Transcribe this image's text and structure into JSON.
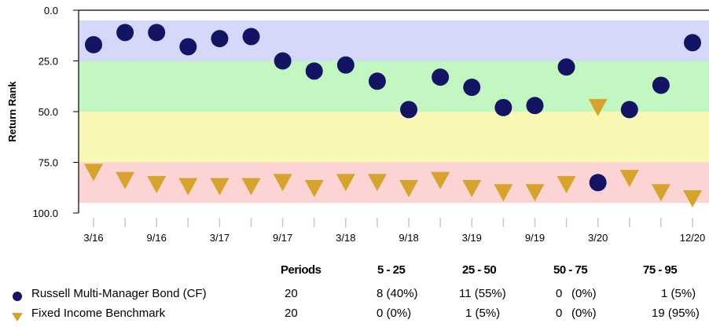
{
  "chart_data": {
    "type": "scatter",
    "ylabel": "Return Rank",
    "y_ticks": [
      "0.0",
      "25.0",
      "50.0",
      "75.0",
      "100.0"
    ],
    "ylim": [
      0,
      100
    ],
    "y_inverted": true,
    "x_tick_labels": [
      "3/16",
      "9/16",
      "3/17",
      "9/17",
      "3/18",
      "9/18",
      "3/19",
      "9/19",
      "3/20",
      "12/20"
    ],
    "bands": [
      {
        "from": 5,
        "to": 25,
        "color": "#d6d8fa"
      },
      {
        "from": 25,
        "to": 50,
        "color": "#c2f7c2"
      },
      {
        "from": 50,
        "to": 75,
        "color": "#f9f7b4"
      },
      {
        "from": 75,
        "to": 95,
        "color": "#fdd4d4"
      }
    ],
    "series": [
      {
        "name": "Russell Multi-Manager Bond (CF)",
        "marker": "circle",
        "color": "#141464",
        "values": [
          17,
          11,
          11,
          18,
          14,
          13,
          25,
          30,
          27,
          35,
          49,
          33,
          38,
          48,
          47,
          28,
          85,
          49,
          37,
          16
        ]
      },
      {
        "name": "Fixed Income Benchmark",
        "marker": "triangle-down",
        "color": "#d6a32c",
        "values": [
          80,
          84,
          86,
          87,
          87,
          87,
          85,
          88,
          85,
          85,
          88,
          84,
          88,
          90,
          90,
          86,
          48,
          83,
          90,
          93
        ]
      }
    ]
  },
  "table": {
    "headers": [
      "Periods",
      "5 - 25",
      "25 - 50",
      "50 - 75",
      "75 - 95"
    ],
    "rows": [
      {
        "label": "Russell Multi-Manager Bond (CF)",
        "periods": "20",
        "r1": "8 (40%)",
        "r2": "11 (55%)",
        "r3": "0",
        "r3p": "(0%)",
        "r4": "1 (5%)"
      },
      {
        "label": "Fixed Income Benchmark",
        "periods": "20",
        "r1": "0 (0%)",
        "r2": "1 (5%)",
        "r3": "0",
        "r3p": "(0%)",
        "r4": "19 (95%)"
      }
    ]
  }
}
